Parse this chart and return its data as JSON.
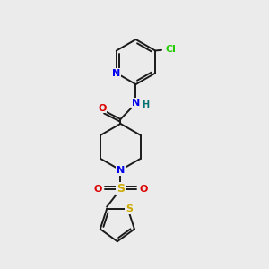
{
  "bg_color": "#ebebeb",
  "bond_color": "#1a1a1a",
  "figsize": [
    3.0,
    3.0
  ],
  "dpi": 100,
  "atom_colors": {
    "N": "#0000ee",
    "O": "#dd0000",
    "S_sulfonyl": "#ccaa00",
    "S_thio": "#ccaa00",
    "Cl": "#22cc00",
    "H": "#007070",
    "C": "#1a1a1a"
  },
  "lw": 1.4,
  "xlim": [
    0,
    10
  ],
  "ylim": [
    0,
    10
  ]
}
